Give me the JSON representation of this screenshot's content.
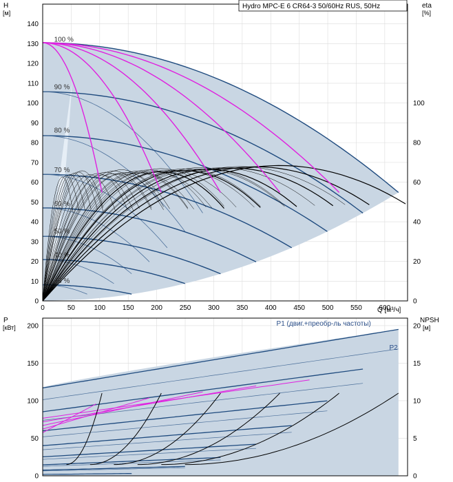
{
  "chart_data": [
    {
      "type": "line",
      "title": "Hydro MPC-E 6 CR64-3 50/60Hz RUS, 50Hz",
      "ylabel_left": "H",
      "yunit_left": "[м]",
      "ylabel_right": "eta",
      "yunit_right": "[%]",
      "xlabel": "Q [м³/ч]",
      "xlim": [
        0,
        640
      ],
      "ylim": [
        0,
        150
      ],
      "ylim_right": [
        0,
        150
      ],
      "x_ticks": [
        0,
        50,
        100,
        150,
        200,
        250,
        300,
        350,
        400,
        450,
        500,
        550,
        600
      ],
      "y_ticks": [
        0,
        10,
        20,
        30,
        40,
        50,
        60,
        70,
        80,
        90,
        100,
        110,
        120,
        130,
        140
      ],
      "y_right_ticks": [
        0,
        20,
        40,
        60,
        80,
        100
      ],
      "speed_labels": [
        {
          "text": "100 %",
          "x": 20,
          "y": 130
        },
        {
          "text": "90 %",
          "x": 20,
          "y": 106
        },
        {
          "text": "80 %",
          "x": 20,
          "y": 84
        },
        {
          "text": "70 %",
          "x": 20,
          "y": 64
        },
        {
          "text": "60 %",
          "x": 20,
          "y": 47
        },
        {
          "text": "50 %",
          "x": 20,
          "y": 33
        },
        {
          "text": "40 %",
          "x": 20,
          "y": 21
        },
        {
          "text": "25 %",
          "x": 20,
          "y": 8
        }
      ],
      "pump_max_head": 130.5,
      "flow_per_pump_at_full_speed": 104,
      "pump_counts": [
        1,
        2,
        3,
        4,
        5,
        6
      ],
      "speed_fractions": [
        1.0,
        0.9,
        0.8,
        0.7,
        0.6,
        0.5,
        0.4,
        0.25
      ],
      "colors": {
        "envelope": "#c9d6e3",
        "envelope_light": "#e6eef6",
        "qh_curve": "#1e4a7e",
        "qh_curve_thin": "#4b6f9a",
        "single_pump_curve": "#e020e0",
        "efficiency_curve": "#000000",
        "grid": "#dcdcdc"
      }
    },
    {
      "type": "line",
      "ylabel_left": "P",
      "yunit_left": "[кВт]",
      "ylabel_right": "NPSH",
      "yunit_right": "[м]",
      "xlim": [
        0,
        640
      ],
      "ylim": [
        0,
        210
      ],
      "ylim_right": [
        0,
        21
      ],
      "y_ticks": [
        0,
        50,
        100,
        150,
        200
      ],
      "y_right_ticks": [
        0,
        5,
        10,
        15,
        20
      ],
      "series_labels": [
        {
          "text": "P1 (двиг.+преобр-ль частоты)",
          "x": 410,
          "y": 200
        },
        {
          "text": "P2",
          "x": 608,
          "y": 168
        }
      ],
      "p1_at_max_flow": 195,
      "p2_at_max_flow": 176,
      "npsh_at_max_flow": 11
    }
  ]
}
